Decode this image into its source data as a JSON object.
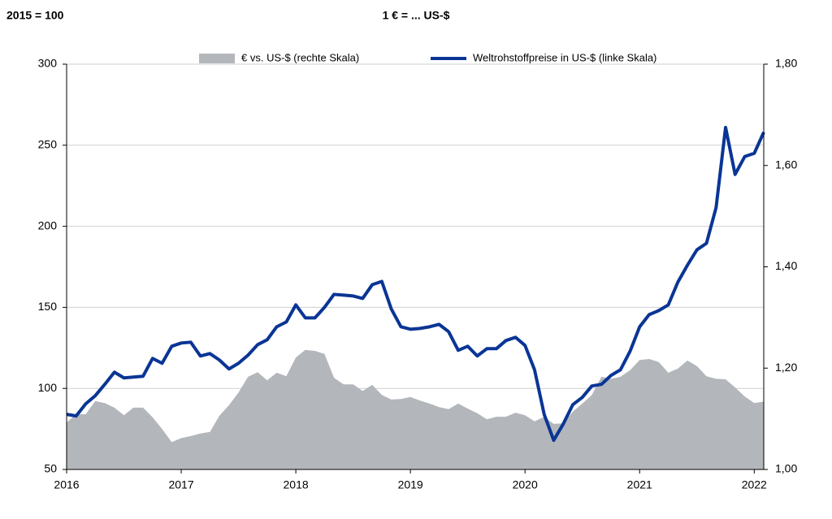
{
  "chart_data": {
    "type": "area_line",
    "left_note": "2015 = 100",
    "title": "1 € = ... US-$",
    "x": [
      2016,
      2016.083,
      2016.167,
      2016.25,
      2016.333,
      2016.417,
      2016.5,
      2016.583,
      2016.667,
      2016.75,
      2016.833,
      2016.917,
      2017,
      2017.083,
      2017.167,
      2017.25,
      2017.333,
      2017.417,
      2017.5,
      2017.583,
      2017.667,
      2017.75,
      2017.833,
      2017.917,
      2018,
      2018.083,
      2018.167,
      2018.25,
      2018.333,
      2018.417,
      2018.5,
      2018.583,
      2018.667,
      2018.75,
      2018.833,
      2018.917,
      2019,
      2019.083,
      2019.167,
      2019.25,
      2019.333,
      2019.417,
      2019.5,
      2019.583,
      2019.667,
      2019.75,
      2019.833,
      2019.917,
      2020,
      2020.083,
      2020.167,
      2020.25,
      2020.333,
      2020.417,
      2020.5,
      2020.583,
      2020.667,
      2020.75,
      2020.833,
      2020.917,
      2021,
      2021.083,
      2021.167,
      2021.25,
      2021.333,
      2021.417,
      2021.5,
      2021.583,
      2021.667,
      2021.75,
      2021.833,
      2021.917,
      2022,
      2022.083
    ],
    "series": [
      {
        "name": "€ vs. US-$ (rechte Skala)",
        "color": "#b3b6bb",
        "axis": "y2",
        "kind": "area",
        "values": [
          1.093,
          1.109,
          1.109,
          1.135,
          1.131,
          1.122,
          1.107,
          1.122,
          1.122,
          1.103,
          1.08,
          1.054,
          1.062,
          1.066,
          1.071,
          1.074,
          1.106,
          1.127,
          1.152,
          1.183,
          1.192,
          1.176,
          1.191,
          1.184,
          1.221,
          1.236,
          1.234,
          1.228,
          1.181,
          1.168,
          1.168,
          1.155,
          1.167,
          1.147,
          1.138,
          1.139,
          1.143,
          1.136,
          1.13,
          1.123,
          1.119,
          1.13,
          1.12,
          1.111,
          1.099,
          1.104,
          1.104,
          1.112,
          1.107,
          1.095,
          1.104,
          1.09,
          1.091,
          1.114,
          1.13,
          1.147,
          1.183,
          1.179,
          1.183,
          1.196,
          1.216,
          1.218,
          1.212,
          1.191,
          1.199,
          1.215,
          1.204,
          1.184,
          1.179,
          1.178,
          1.162,
          1.144,
          1.131,
          1.134
        ]
      },
      {
        "name": "Weltrohstoffpreise in US-$ (linke Skala)",
        "color": "#0a3595",
        "axis": "y",
        "kind": "line",
        "values": [
          84,
          83,
          90.5,
          95.5,
          102.5,
          110,
          106.5,
          107,
          107.5,
          118.5,
          115.5,
          126,
          128,
          128.5,
          120,
          121.5,
          117.5,
          112,
          115.5,
          120.5,
          127,
          130,
          138,
          141,
          151.5,
          143.5,
          143.5,
          150,
          158,
          157.5,
          157,
          155.5,
          164,
          166,
          149,
          138,
          136.5,
          137,
          138,
          139.5,
          135,
          123.5,
          126,
          120,
          124.5,
          124.5,
          129.5,
          131.5,
          126.5,
          111.5,
          84,
          68,
          78,
          90,
          94.5,
          101.5,
          102.5,
          108,
          111.5,
          123,
          138,
          145.5,
          148,
          151.5,
          165.5,
          176,
          185.5,
          189.5,
          211.5,
          261,
          232,
          243,
          245,
          258
        ]
      }
    ],
    "xlim": [
      2016,
      2022.083
    ],
    "xticks": [
      2016,
      2017,
      2018,
      2019,
      2020,
      2021,
      2022
    ],
    "ylim": [
      50,
      300
    ],
    "yticks": [
      50,
      100,
      150,
      200,
      250,
      300
    ],
    "y2lim": [
      1.0,
      1.8
    ],
    "y2ticks": [
      {
        "value": 1.0,
        "label": "1,00"
      },
      {
        "value": 1.2,
        "label": "1,20"
      },
      {
        "value": 1.4,
        "label": "1,40"
      },
      {
        "value": 1.6,
        "label": "1,60"
      },
      {
        "value": 1.8,
        "label": "1,80"
      }
    ],
    "grid": true
  }
}
